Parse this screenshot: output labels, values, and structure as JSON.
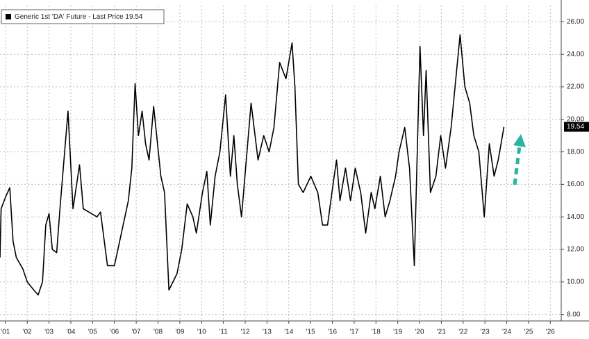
{
  "chart_data": {
    "type": "line",
    "series": [
      {
        "name": "Generic 1st 'DA' Future - Last Price 19.54",
        "color": "#000000",
        "x": [
          2001.25,
          2001.3,
          2001.5,
          2001.7,
          2001.85,
          2002.0,
          2002.3,
          2002.5,
          2002.8,
          2003.0,
          2003.2,
          2003.35,
          2003.5,
          2003.65,
          2003.85,
          2004.0,
          2004.37,
          2004.6,
          2004.9,
          2005.07,
          2005.7,
          2005.86,
          2006.18,
          2006.5,
          2006.82,
          2007.14,
          2007.3,
          2007.45,
          2007.6,
          2007.77,
          2007.93,
          2008.09,
          2008.3,
          2008.63,
          2008.8,
          2009.0,
          2009.37,
          2009.59,
          2009.84,
          2010.1,
          2010.26,
          2010.54,
          2010.74,
          2010.9,
          2011.12,
          2011.34,
          2011.6,
          2011.82,
          2011.98,
          2012.14,
          2012.33,
          2012.55,
          2012.77,
          2013.09,
          2013.35,
          2013.6,
          2013.82,
          2014.08,
          2014.37,
          2014.65,
          2014.78,
          2014.94,
          2015.16,
          2015.51,
          2015.83,
          2016.05,
          2016.28,
          2016.53,
          2016.69,
          2016.85,
          2017.1,
          2017.33,
          2017.55,
          2017.8,
          2018.03,
          2018.28,
          2018.45,
          2018.7,
          2018.92,
          2019.14,
          2019.4,
          2019.56,
          2019.82,
          2020.04,
          2020.26,
          2020.52,
          2020.68,
          2020.8,
          2021.0,
          2021.25,
          2021.47,
          2021.69,
          2021.95,
          2022.2,
          2022.36,
          2022.58,
          2022.8,
          2022.99,
          2023.22,
          2023.47,
          2023.7,
          2023.92,
          2024.11,
          2024.24,
          2024.37
        ],
        "values": [
          11.5,
          14.5,
          15.2,
          15.8,
          12.5,
          11.5,
          10.8,
          10.0,
          9.5,
          9.2,
          10.0,
          13.5,
          14.2,
          12.0,
          11.8,
          14.5,
          20.5,
          14.5,
          17.2,
          14.5,
          14.0,
          14.3,
          11.0,
          11.0,
          13.0,
          15.0,
          17.0,
          22.2,
          19.0,
          20.5,
          18.5,
          17.5,
          20.8,
          16.5,
          15.5,
          9.5,
          10.5,
          12.0,
          14.8,
          14.0,
          13.0,
          15.5,
          16.8,
          13.5,
          16.5,
          18.0,
          21.5,
          16.5,
          19.0,
          16.0,
          14.0,
          17.5,
          21.0,
          17.5,
          19.0,
          18.0,
          19.5,
          23.5,
          22.5,
          24.7,
          22.0,
          16.0,
          15.5,
          16.5,
          15.5,
          13.5,
          13.5,
          16.0,
          17.5,
          15.0,
          17.0,
          15.0,
          17.0,
          15.5,
          13.0,
          15.5,
          14.5,
          16.5,
          14.0,
          15.0,
          16.5,
          18.0,
          19.5,
          17.0,
          11.0,
          24.5,
          19.0,
          23.0,
          15.5,
          16.5,
          19.0,
          17.0,
          19.5,
          23.0,
          25.2,
          22.0,
          21.0,
          19.0,
          18.0,
          14.0,
          18.5,
          16.5,
          17.5,
          18.5,
          19.54
        ]
      }
    ],
    "last_price": 19.54,
    "xlim": [
      2001.25,
      2027.0
    ],
    "ylim": [
      7.6,
      27.0
    ],
    "xticks": [
      {
        "value": 2001.5,
        "label": "'01"
      },
      {
        "value": 2002.5,
        "label": "'02"
      },
      {
        "value": 2003.5,
        "label": "'03"
      },
      {
        "value": 2004.5,
        "label": "'04"
      },
      {
        "value": 2005.5,
        "label": "'05"
      },
      {
        "value": 2006.5,
        "label": "'06"
      },
      {
        "value": 2007.5,
        "label": "'07"
      },
      {
        "value": 2008.5,
        "label": "'08"
      },
      {
        "value": 2009.5,
        "label": "'09"
      },
      {
        "value": 2010.5,
        "label": "'10"
      },
      {
        "value": 2011.5,
        "label": "'11"
      },
      {
        "value": 2012.5,
        "label": "'12"
      },
      {
        "value": 2013.5,
        "label": "'13"
      },
      {
        "value": 2014.5,
        "label": "'14"
      },
      {
        "value": 2015.5,
        "label": "'15"
      },
      {
        "value": 2016.5,
        "label": "'16"
      },
      {
        "value": 2017.5,
        "label": "'17"
      },
      {
        "value": 2018.5,
        "label": "'18"
      },
      {
        "value": 2019.5,
        "label": "'19"
      },
      {
        "value": 2020.5,
        "label": "'20"
      },
      {
        "value": 2021.5,
        "label": "'21"
      },
      {
        "value": 2022.5,
        "label": "'22"
      },
      {
        "value": 2023.5,
        "label": "'23"
      },
      {
        "value": 2024.5,
        "label": "'24"
      },
      {
        "value": 2025.5,
        "label": "'25"
      },
      {
        "value": 2026.5,
        "label": "'26"
      }
    ],
    "yticks": [
      {
        "value": 8,
        "label": "8.00"
      },
      {
        "value": 10,
        "label": "10.00"
      },
      {
        "value": 12,
        "label": "12.00"
      },
      {
        "value": 14,
        "label": "14.00"
      },
      {
        "value": 16,
        "label": "16.00"
      },
      {
        "value": 18,
        "label": "18.00"
      },
      {
        "value": 20,
        "label": "20.00"
      },
      {
        "value": 22,
        "label": "22.00"
      },
      {
        "value": 24,
        "label": "24.00"
      },
      {
        "value": 26,
        "label": "26.00"
      }
    ],
    "grid": true
  }
}
